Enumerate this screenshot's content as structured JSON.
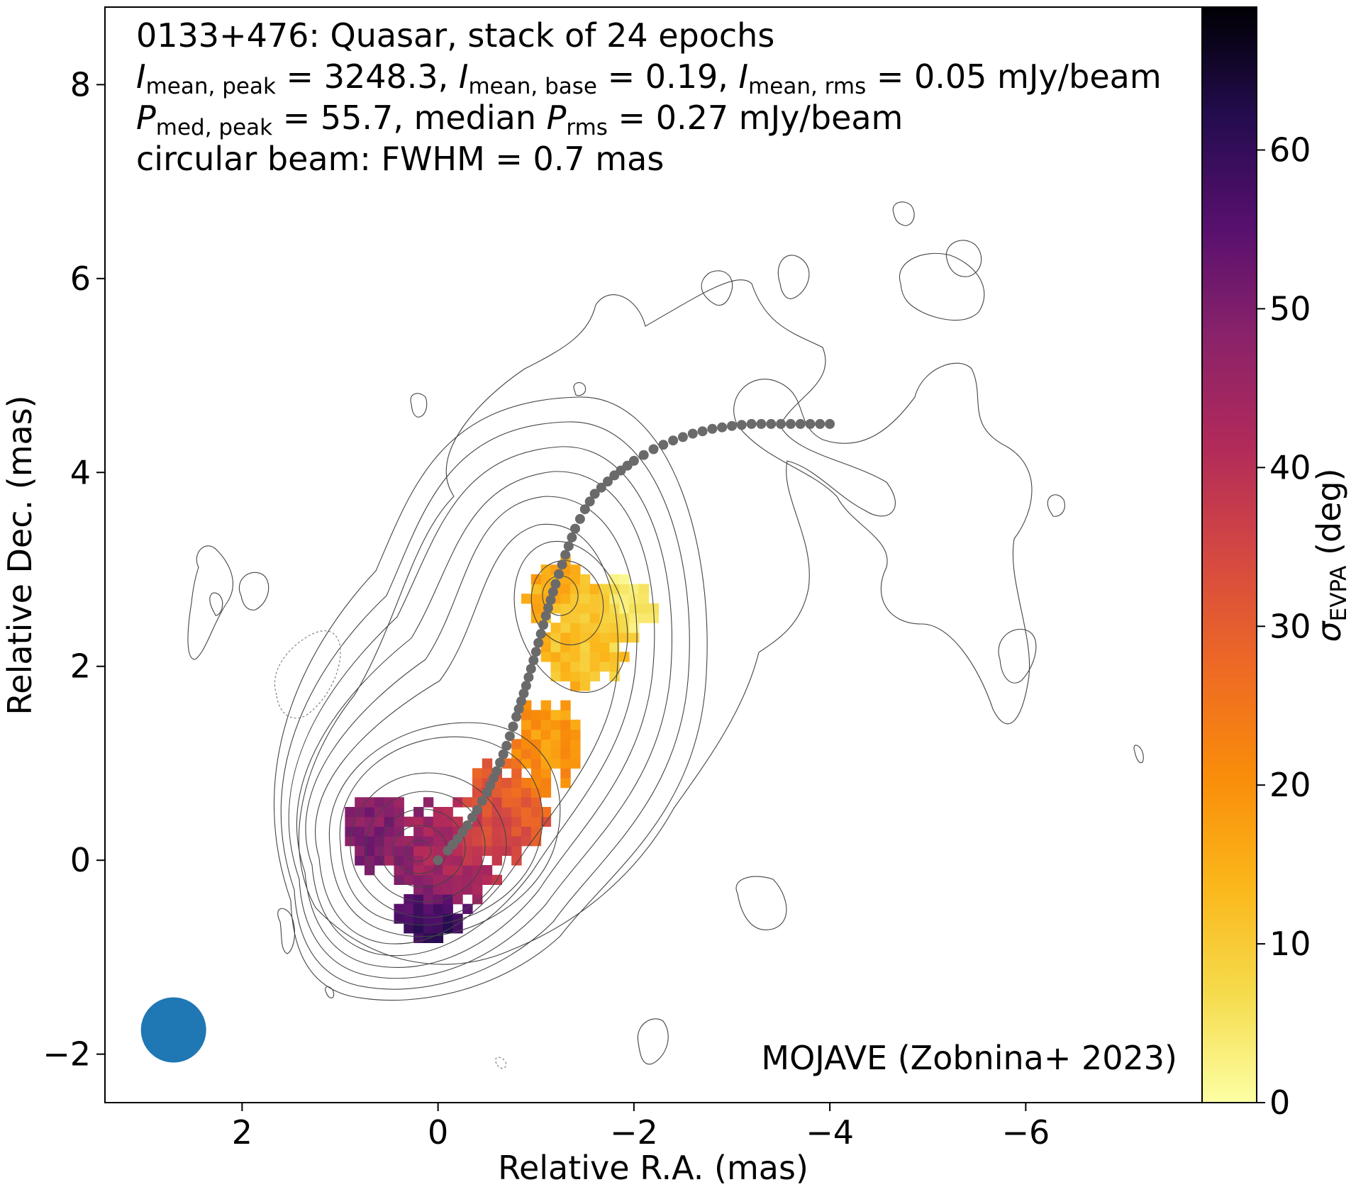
{
  "chart_data": {
    "type": "heatmap",
    "title_lines": [
      "0133+476: Quasar, stack of 24 epochs",
      "I_mean,peak = 3248.3, I_mean,base = 0.19, I_mean,rms = 0.05 mJy/beam",
      "P_med,peak = 55.7, median P_rms = 0.27 mJy/beam",
      "circular beam: FWHM = 0.7 mas"
    ],
    "title_parts": {
      "line2": {
        "s1": "I",
        "sub1": "mean, peak",
        "v1": " = 3248.3, ",
        "s2": "I",
        "sub2": "mean, base",
        "v2": " = 0.19, ",
        "s3": "I",
        "sub3": "mean, rms",
        "v3": " = 0.05 mJy/beam"
      },
      "line3": {
        "s1": "P",
        "sub1": "med, peak",
        "v1": " = 55.7, median ",
        "s2": "P",
        "sub2": "rms",
        "v2": " = 0.27 mJy/beam"
      }
    },
    "credit": "MOJAVE (Zobnina+ 2023)",
    "xlabel": "Relative R.A. (mas)",
    "ylabel": "Relative Dec. (mas)",
    "colorbar_label": {
      "symbol": "σ",
      "sub": "EVPA",
      "unit": " (deg)"
    },
    "xlim": [
      3.4,
      -7.8
    ],
    "ylim": [
      -2.5,
      8.8
    ],
    "x_ticks": [
      2,
      0,
      -2,
      -4,
      -6
    ],
    "x_tick_labels": [
      "2",
      "0",
      "−2",
      "−4",
      "−6"
    ],
    "y_ticks": [
      -2,
      0,
      2,
      4,
      6,
      8
    ],
    "y_tick_labels": [
      "−2",
      "0",
      "2",
      "4",
      "6",
      "8"
    ],
    "colorbar_range": [
      0,
      69
    ],
    "colorbar_ticks": [
      0,
      10,
      20,
      30,
      40,
      50,
      60
    ],
    "colorbar_tick_labels": [
      "0",
      "10",
      "20",
      "30",
      "40",
      "50",
      "60"
    ],
    "colormap": "inferno_r",
    "ridgeline": {
      "x": [
        0.0,
        -0.1,
        -0.2,
        -0.3,
        -0.4,
        -0.5,
        -0.6,
        -0.7,
        -0.8,
        -0.9,
        -1.0,
        -1.1,
        -1.2,
        -1.3,
        -1.4,
        -1.5,
        -1.6,
        -1.8,
        -2.0,
        -2.2,
        -2.4,
        -2.6,
        -2.8,
        -3.0,
        -3.2,
        -3.4,
        -3.6,
        -3.8,
        -4.0
      ],
      "y": [
        0.0,
        0.1,
        0.22,
        0.36,
        0.52,
        0.7,
        0.92,
        1.18,
        1.48,
        1.8,
        2.15,
        2.52,
        2.85,
        3.15,
        3.42,
        3.62,
        3.78,
        3.97,
        4.12,
        4.24,
        4.33,
        4.4,
        4.45,
        4.48,
        4.5,
        4.5,
        4.5,
        4.5,
        4.5
      ],
      "color": "#6a6a6a"
    },
    "beam": {
      "x": 2.7,
      "y": -1.75,
      "fwhm_mas": 0.7,
      "color": "#1f77b4"
    },
    "emission_regions": [
      {
        "x": -0.1,
        "y": 0.05,
        "sx": 0.55,
        "sy": 0.55,
        "sigma_evpa": 44
      },
      {
        "x": 0.1,
        "y": -0.6,
        "sx": 0.35,
        "sy": 0.25,
        "sigma_evpa": 62
      },
      {
        "x": 0.6,
        "y": 0.3,
        "sx": 0.35,
        "sy": 0.4,
        "sigma_evpa": 50
      },
      {
        "x": -0.7,
        "y": 0.5,
        "sx": 0.45,
        "sy": 0.55,
        "sigma_evpa": 30
      },
      {
        "x": -1.1,
        "y": 1.2,
        "sx": 0.35,
        "sy": 0.45,
        "sigma_evpa": 18
      },
      {
        "x": -1.5,
        "y": 2.2,
        "sx": 0.4,
        "sy": 0.45,
        "sigma_evpa": 12
      },
      {
        "x": -1.25,
        "y": 2.75,
        "sx": 0.35,
        "sy": 0.35,
        "sigma_evpa": 15
      },
      {
        "x": -1.9,
        "y": 2.6,
        "sx": 0.3,
        "sy": 0.35,
        "sigma_evpa": 4
      }
    ]
  }
}
